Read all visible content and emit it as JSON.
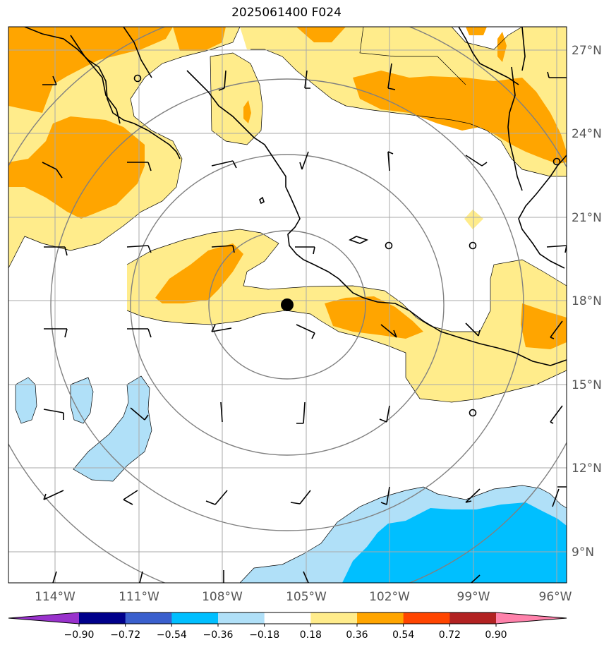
{
  "title": "2025061400 F024",
  "lat_labels": [
    "27°N",
    "24°N",
    "21°N",
    "18°N",
    "15°N",
    "12°N",
    "9°N"
  ],
  "lon_labels": [
    "114°W",
    "111°W",
    "108°W",
    "105°W",
    "102°W",
    "99°W",
    "96°W"
  ],
  "colorbar": {
    "ticks": [
      "−0.90",
      "−0.72",
      "−0.54",
      "−0.36",
      "−0.18",
      "0.18",
      "0.36",
      "0.54",
      "0.72",
      "0.90"
    ],
    "colors": [
      "#9932cc",
      "#00008b",
      "#3a5fcd",
      "#00bfff",
      "#b0e0f8",
      "#ffffff",
      "#ffec8b",
      "#ffa500",
      "#ff4500",
      "#b22222",
      "#ff82ab"
    ]
  },
  "palette": {
    "light_yellow": "#ffec8b",
    "orange": "#ffa500",
    "light_blue": "#b0e0f8",
    "deep_sky_blue": "#00bfff",
    "grid": "#aaaaaa",
    "range_rings": "#808080"
  },
  "storm_center": {
    "lon": -105.7,
    "lat": 17.9
  }
}
